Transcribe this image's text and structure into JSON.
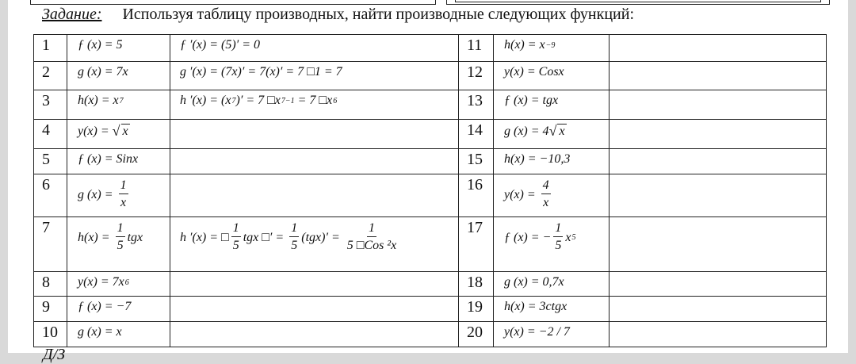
{
  "task": {
    "label": "Задание:",
    "text": "Используя таблицу производных, найти производные следующих функций:"
  },
  "rows": [
    {
      "left": {
        "num": "1",
        "func": [
          "ƒ (x) = 5"
        ],
        "sol": [
          "ƒ ′(x) = (5)′ = 0"
        ]
      },
      "right": {
        "num": "11",
        "func": [
          "h(x) = x",
          {
            "sup": "−9"
          }
        ]
      }
    },
    {
      "left": {
        "num": "2",
        "func": [
          "g (x) = 7x"
        ],
        "sol": [
          "g ′(x) = (7x)′ = 7(x)′ = 7 □1 = 7"
        ]
      },
      "right": {
        "num": "12",
        "func": [
          "y(x) = Cosx"
        ]
      }
    },
    {
      "left": {
        "num": "3",
        "func": [
          "h(x) = x",
          {
            "sup": "7"
          }
        ],
        "sol": [
          "h ′(x) = (x",
          {
            "sup": "7"
          },
          ")′ = 7 □x",
          {
            "sup": "7−1"
          },
          " = 7 □x",
          {
            "sup": "6"
          }
        ]
      },
      "right": {
        "num": "13",
        "func": [
          "ƒ (x) = tgx"
        ]
      }
    },
    {
      "left": {
        "num": "4",
        "func": [
          "y(x) = ",
          {
            "sqrt": "x"
          }
        ],
        "sol": []
      },
      "right": {
        "num": "14",
        "func": [
          "g (x) = 4",
          {
            "sqrt": "x"
          }
        ]
      }
    },
    {
      "left": {
        "num": "5",
        "func": [
          "ƒ (x) = Sinx"
        ],
        "sol": []
      },
      "right": {
        "num": "15",
        "func": [
          "h(x) = −10,3"
        ]
      }
    },
    {
      "left": {
        "num": "6",
        "func": [
          "g (x) = ",
          {
            "frac": [
              "1",
              "x"
            ]
          }
        ],
        "sol": []
      },
      "right": {
        "num": "16",
        "func": [
          "y(x) = ",
          {
            "frac": [
              "4",
              "x"
            ]
          }
        ]
      }
    },
    {
      "left": {
        "num": "7",
        "func": [
          "h(x) = ",
          {
            "frac": [
              "1",
              "5"
            ]
          },
          "tgx"
        ],
        "sol": [
          "h ′(x) = □",
          {
            "frac": [
              "1",
              "5"
            ]
          },
          "tgx □′ = ",
          {
            "frac": [
              "1",
              "5"
            ]
          },
          "(tgx)′ = ",
          {
            "frac": [
              "1",
              "5 □Cos ²x"
            ]
          }
        ]
      },
      "right": {
        "num": "17",
        "func": [
          "ƒ (x) = −",
          {
            "frac": [
              "1",
              "5"
            ]
          },
          "x",
          {
            "sup": "5"
          }
        ]
      }
    },
    {
      "left": {
        "num": "8",
        "func": [
          "y(x) = 7x",
          {
            "sup": "6"
          }
        ],
        "sol": []
      },
      "right": {
        "num": "18",
        "func": [
          "g (x) = 0,7x"
        ]
      }
    },
    {
      "left": {
        "num": "9",
        "func": [
          "ƒ (x) = −7"
        ],
        "sol": []
      },
      "right": {
        "num": "19",
        "func": [
          "h(x) = 3ctgx"
        ]
      }
    },
    {
      "left": {
        "num": "10",
        "func": [
          "g (x) = x"
        ],
        "sol": []
      },
      "right": {
        "num": "20",
        "func": [
          "y(x) = −2 / 7"
        ]
      }
    }
  ],
  "homework_label": "Д/З"
}
